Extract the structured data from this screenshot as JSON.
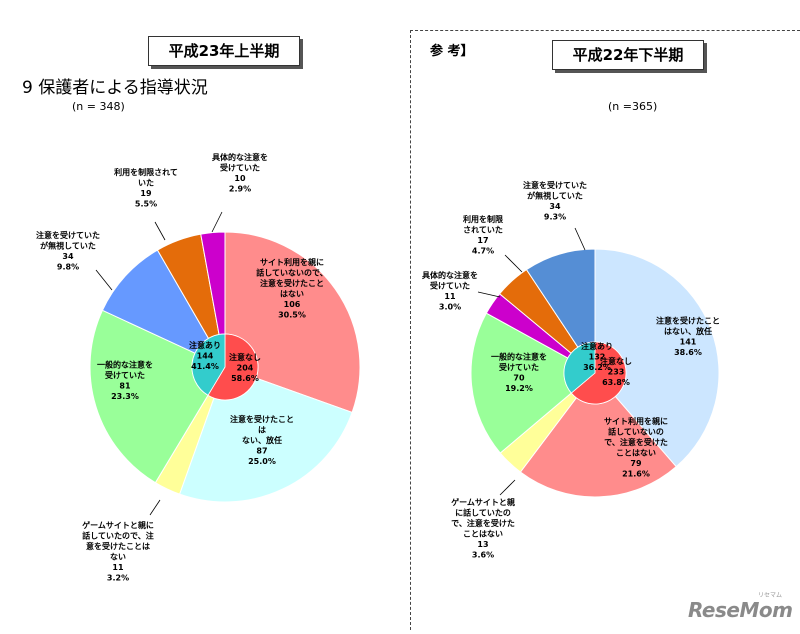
{
  "header": {
    "left_title": "平成23年上半期",
    "right_title": "平成22年下半期",
    "section_heading": "9  保護者による指導状況",
    "reference_label": "参   考】"
  },
  "logo": {
    "text": "ReseMom",
    "kana": "リセマム"
  },
  "chart_data": [
    {
      "type": "pie",
      "n_label": "(n = 348)",
      "outer_ring": [
        {
          "lines": [
            "サイト利用を親に",
            "話していないので、",
            "注意を受けたこと",
            "はない",
            "106",
            "30.5%"
          ],
          "value": 106,
          "percent": 30.5,
          "color": "#ff8c8c",
          "group": "なし"
        },
        {
          "lines": [
            "注意を受けたこと",
            "は",
            "ない、放任",
            "87",
            "25.0%"
          ],
          "value": 87,
          "percent": 25.0,
          "color": "#ccffff",
          "group": "なし"
        },
        {
          "lines": [
            "ゲームサイトと親に",
            "話していたので、注",
            "意を受けたことは",
            "ない",
            "11",
            "3.2%"
          ],
          "value": 11,
          "percent": 3.2,
          "color": "#ffff99",
          "group": "なし"
        },
        {
          "lines": [
            "一般的な注意を",
            "受けていた",
            "81",
            "23.3%"
          ],
          "value": 81,
          "percent": 23.3,
          "color": "#99ff99",
          "group": "あり"
        },
        {
          "lines": [
            "注意を受けていた",
            "が無視していた",
            "34",
            "9.8%"
          ],
          "value": 34,
          "percent": 9.8,
          "color": "#6699ff",
          "group": "あり"
        },
        {
          "lines": [
            "利用を制限されて",
            "いた",
            "19",
            "5.5%"
          ],
          "value": 19,
          "percent": 5.5,
          "color": "#e46c0a",
          "group": "あり"
        },
        {
          "lines": [
            "具体的な注意を",
            "受けていた",
            "10",
            "2.9%"
          ],
          "value": 10,
          "percent": 2.9,
          "color": "#cc00cc",
          "group": "あり"
        }
      ],
      "inner_ring": [
        {
          "lines": [
            "注意なし",
            "204",
            "58.6%"
          ],
          "value": 204,
          "percent": 58.6,
          "color": "#ff4d4d"
        },
        {
          "lines": [
            "注意あり",
            "144",
            "41.4%"
          ],
          "value": 144,
          "percent": 41.4,
          "color": "#33cccc"
        }
      ]
    },
    {
      "type": "pie",
      "n_label": "(n =365)",
      "outer_ring": [
        {
          "lines": [
            "注意を受けたこと",
            "はない、放任",
            "141",
            "38.6%"
          ],
          "value": 141,
          "percent": 38.6,
          "color": "#cce6ff",
          "group": "なし"
        },
        {
          "lines": [
            "サイト利用を親に",
            "話していないの",
            "で、注意を受けた",
            "ことはない",
            "79",
            "21.6%"
          ],
          "value": 79,
          "percent": 21.6,
          "color": "#ff8c8c",
          "group": "なし"
        },
        {
          "lines": [
            "ゲームサイトと親",
            "に話していたの",
            "で、注意を受けた",
            "ことはない",
            "13",
            "3.6%"
          ],
          "value": 13,
          "percent": 3.6,
          "color": "#ffff99",
          "group": "なし"
        },
        {
          "lines": [
            "一般的な注意を",
            "受けていた",
            "70",
            "19.2%"
          ],
          "value": 70,
          "percent": 19.2,
          "color": "#99ff99",
          "group": "あり"
        },
        {
          "lines": [
            "具体的な注意を",
            "受けていた",
            "11",
            "3.0%"
          ],
          "value": 11,
          "percent": 3.0,
          "color": "#cc00cc",
          "group": "あり"
        },
        {
          "lines": [
            "利用を制限",
            "されていた",
            "17",
            "4.7%"
          ],
          "value": 17,
          "percent": 4.7,
          "color": "#e46c0a",
          "group": "あり"
        },
        {
          "lines": [
            "注意を受けていた",
            "が無視していた",
            "34",
            "9.3%"
          ],
          "value": 34,
          "percent": 9.3,
          "color": "#558ed5",
          "group": "あり"
        }
      ],
      "inner_ring": [
        {
          "lines": [
            "注意なし",
            "233",
            "63.8%"
          ],
          "value": 233,
          "percent": 63.8,
          "color": "#ff4d4d"
        },
        {
          "lines": [
            "注意あり",
            "132",
            "36.2%"
          ],
          "value": 132,
          "percent": 36.2,
          "color": "#33cccc"
        }
      ]
    }
  ]
}
